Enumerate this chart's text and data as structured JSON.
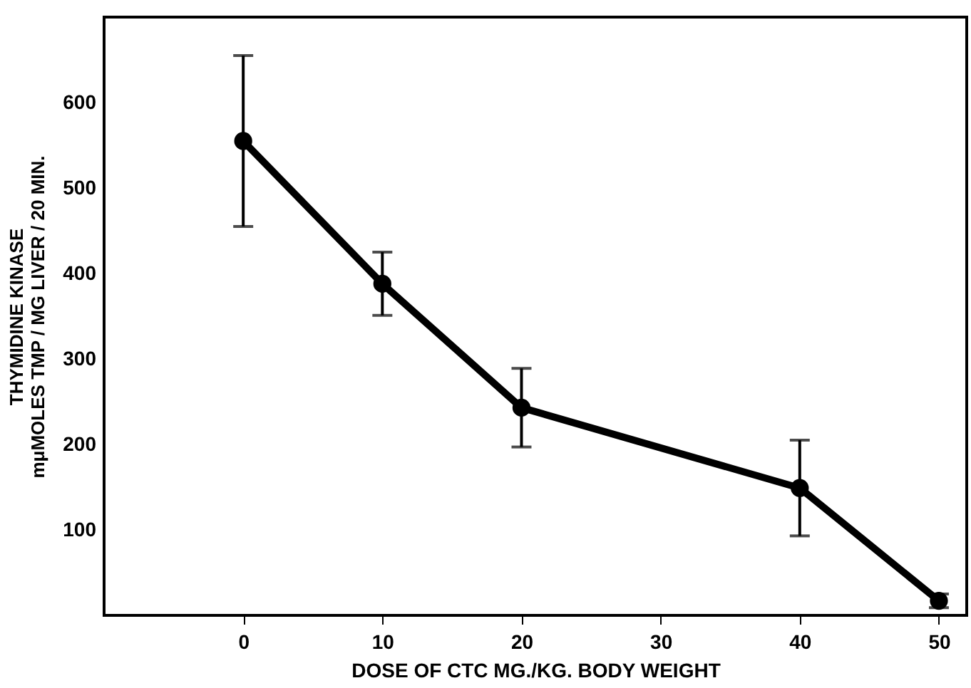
{
  "chart_data": {
    "type": "line",
    "xlabel": "DOSE OF CTC MG./KG. BODY WEIGHT",
    "ylabel": "THYMIDINE KINASE\nmμMOLES TMP / MG LIVER / 20 MIN.",
    "x": [
      0,
      10,
      20,
      40,
      50
    ],
    "series": [
      {
        "color": "#000000",
        "values": [
          555,
          388,
          243,
          149,
          17
        ],
        "errors": [
          100,
          37,
          46,
          56,
          8
        ]
      }
    ],
    "xlim": [
      -10,
      52
    ],
    "xticks": [
      0,
      10,
      20,
      30,
      40,
      50
    ],
    "ylim": [
      0,
      700
    ],
    "yticks": [
      100,
      200,
      300,
      400,
      500,
      600
    ],
    "marker": "circle",
    "line_style": "solid",
    "grid": false
  }
}
